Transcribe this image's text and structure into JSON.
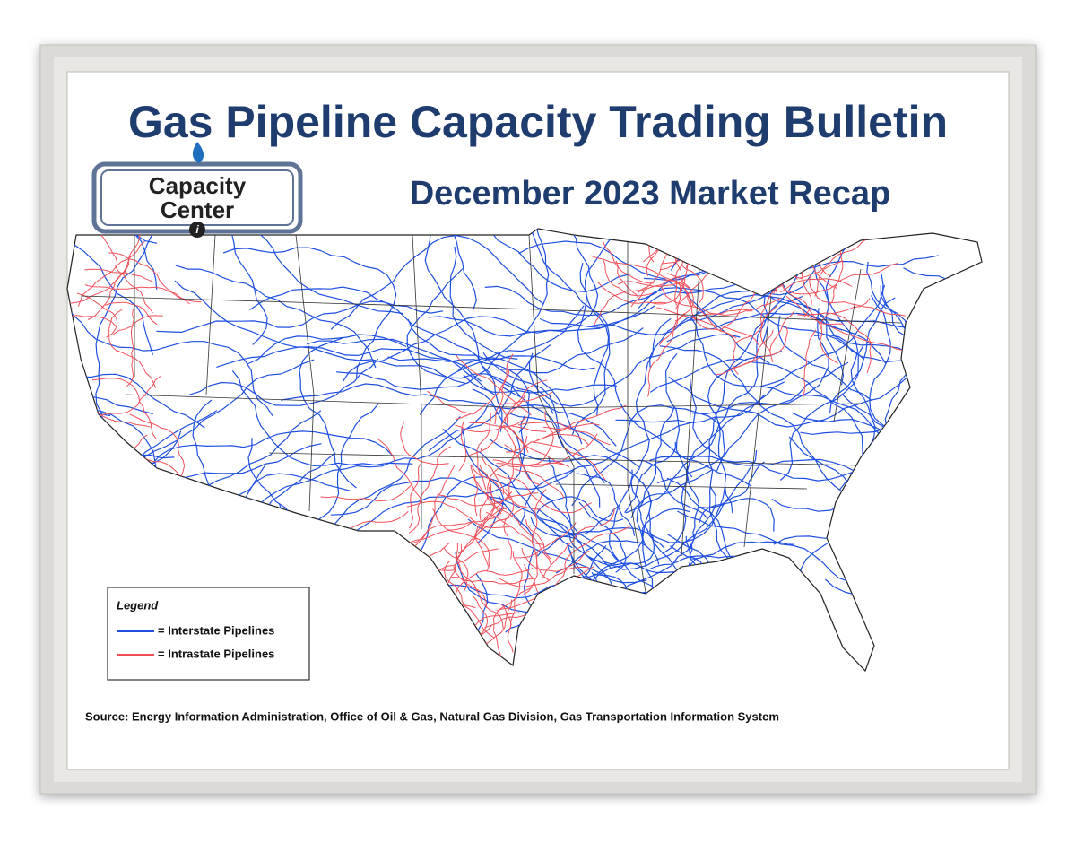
{
  "header": {
    "title": "Gas Pipeline Capacity Trading Bulletin",
    "subtitle": "December 2023 Market Recap"
  },
  "logo": {
    "lines": [
      "Capacity",
      "Center"
    ]
  },
  "legend": {
    "title": "Legend",
    "items": [
      {
        "label": "= Interstate Pipelines",
        "color": "#1e4fe0"
      },
      {
        "label": "= Intrastate Pipelines",
        "color": "#f0505a"
      }
    ]
  },
  "source": "Source: Energy Information Administration, Office of Oil & Gas, Natural Gas Division, Gas Transportation Information System"
}
